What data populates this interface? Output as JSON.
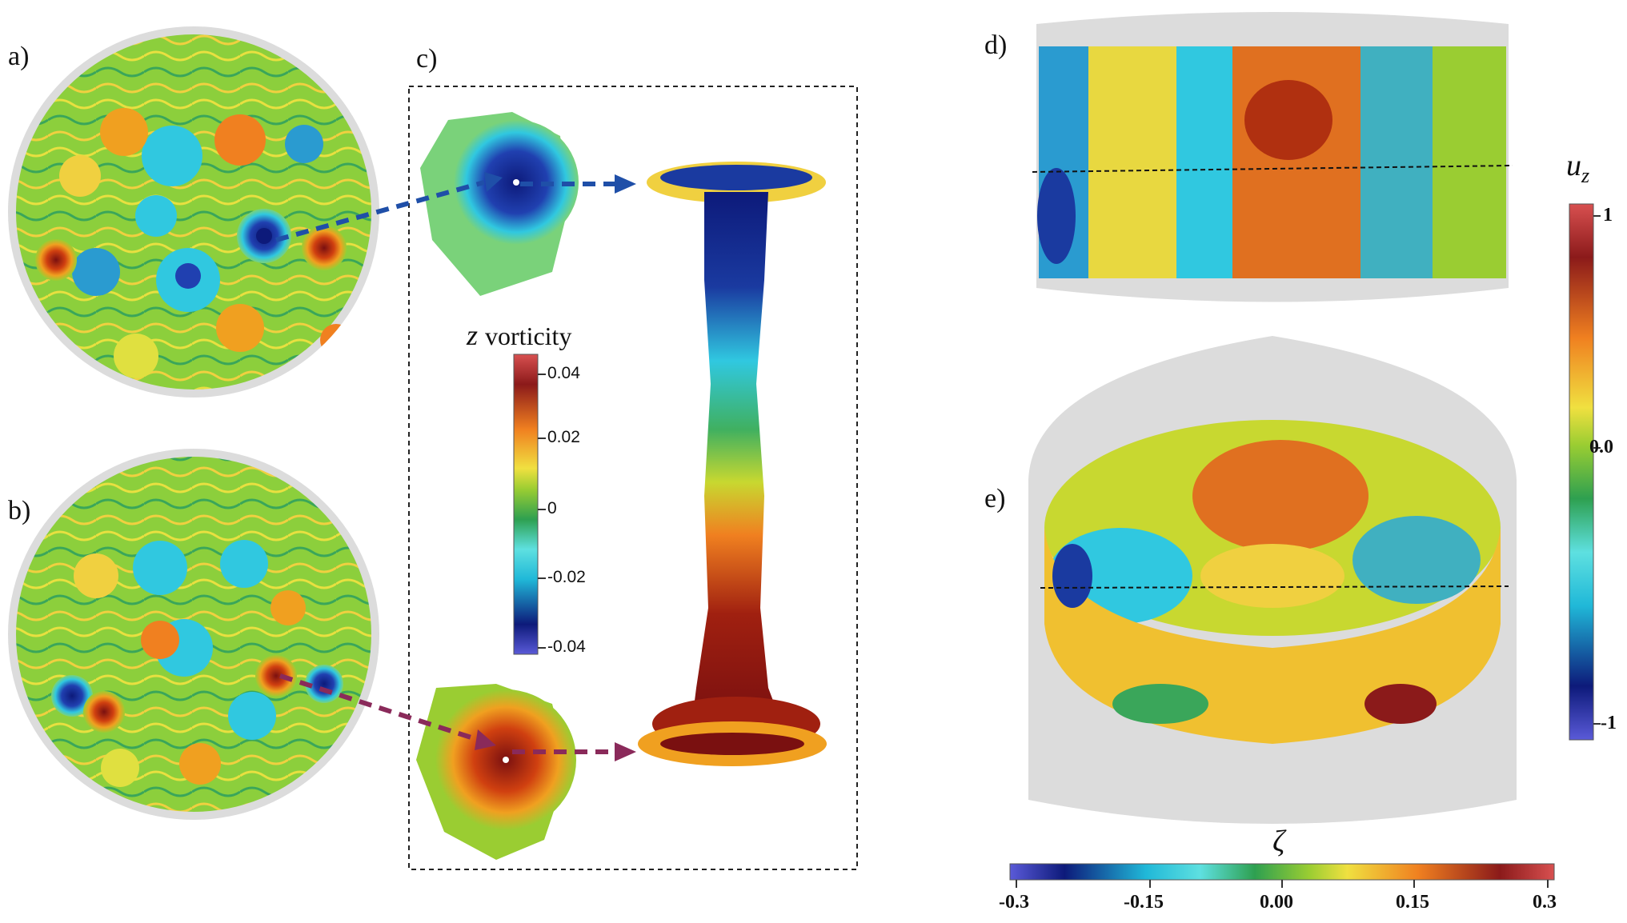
{
  "panels": {
    "a": {
      "label": "a)"
    },
    "b": {
      "label": "b)"
    },
    "c": {
      "label": "c)"
    },
    "d": {
      "label": "d)"
    },
    "e": {
      "label": "e)"
    }
  },
  "vorticity_colorbar": {
    "symbol": "z",
    "word": "vorticity",
    "ticks": [
      "0.04",
      "0.02",
      "0",
      "-0.02",
      "-0.04"
    ]
  },
  "uz_colorbar": {
    "symbol": "u",
    "subscript": "z",
    "ticks": [
      "1",
      "0.0",
      "-1"
    ]
  },
  "zeta_colorbar": {
    "symbol": "ζ",
    "ticks": [
      "-0.3",
      "-0.15",
      "0.00",
      "0.15",
      "0.3"
    ]
  },
  "colors": {
    "arrow_blue": "#1f4fa8",
    "arrow_purple": "#8a2a5a",
    "disk_gray": "#d9d9d9"
  }
}
